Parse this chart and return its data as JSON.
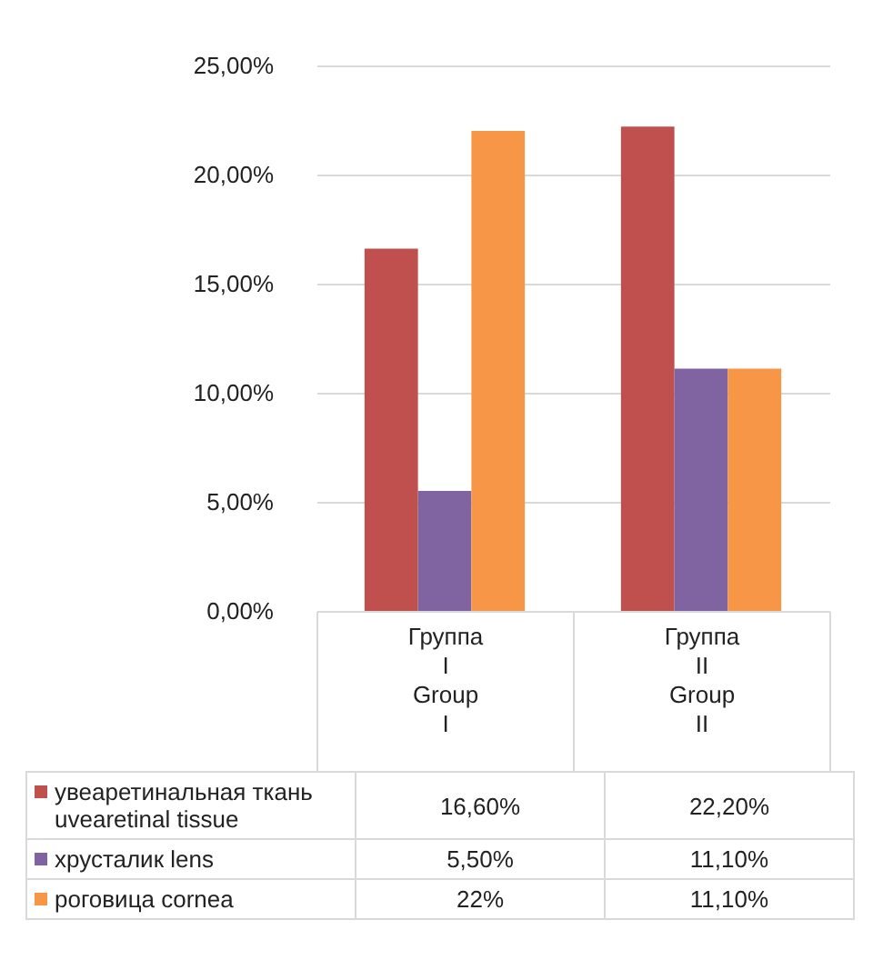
{
  "chart_data": {
    "type": "bar",
    "categories": [
      "Группа\nI\nGroup\nI",
      "Группа\nII\nGroup\nII"
    ],
    "series": [
      {
        "name": "увеаретинальная ткань uvearetinal tissue",
        "color": "#c0504d",
        "values": [
          16.6,
          22.2
        ],
        "value_labels": [
          "16,60%",
          "22,20%"
        ]
      },
      {
        "name": "хрусталик lens",
        "color": "#8064a2",
        "values": [
          5.5,
          11.1
        ],
        "value_labels": [
          "5,50%",
          "11,10%"
        ]
      },
      {
        "name": "роговица cornea",
        "color": "#f79646",
        "values": [
          22,
          11.1
        ],
        "value_labels": [
          "22%",
          "11,10%"
        ]
      }
    ],
    "ylim": [
      0,
      25
    ],
    "yticks": [
      {
        "value": 0,
        "label": "0,00%"
      },
      {
        "value": 5,
        "label": "5,00%"
      },
      {
        "value": 10,
        "label": "10,00%"
      },
      {
        "value": 15,
        "label": "15,00%"
      },
      {
        "value": 20,
        "label": "20,00%"
      },
      {
        "value": 25,
        "label": "25,00%"
      }
    ],
    "grid": "y",
    "legend": "bottom"
  }
}
